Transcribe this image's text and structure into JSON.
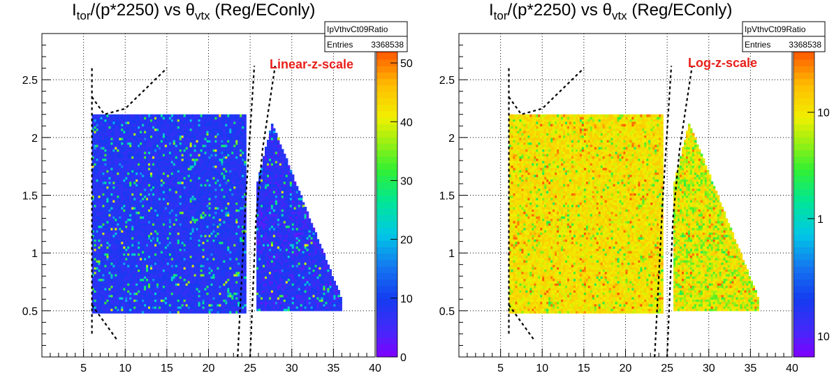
{
  "chart_data": [
    {
      "type": "heatmap",
      "title_main": "I",
      "title_sub1": "tor",
      "title_mid": "/(p*2250) vs θ",
      "title_sub2": "vtx",
      "title_end": " (Reg/EConly)",
      "stats_name": "IpVthvCt09Ratio",
      "stats_entries_label": "Entries",
      "stats_entries_value": "3368538",
      "annotation": "Linear-z-scale",
      "xlim": [
        0,
        40
      ],
      "ylim": [
        0.1,
        2.9
      ],
      "xticks": [
        5,
        10,
        15,
        20,
        25,
        30,
        35,
        40
      ],
      "yticks": [
        0.5,
        1,
        1.5,
        2,
        2.5
      ],
      "z_scale": "linear",
      "z_range": [
        0,
        55
      ],
      "z_ticks": [
        "0",
        "10",
        "20",
        "30",
        "40",
        "50"
      ],
      "z_tick_values": [
        0,
        10,
        20,
        30,
        40,
        50
      ],
      "bulk_level": 8,
      "regions": [
        {
          "x": [
            6,
            24.3
          ],
          "y_bottom": 0.47,
          "y_top": 2.2
        },
        {
          "x": [
            25.7,
            36
          ],
          "shape": "triangle",
          "y_bottom": 0.5,
          "y_top_at_left": 1.6,
          "apex_x": 27.5,
          "apex_y": 2.12,
          "y_top_at_right": 0.57
        }
      ],
      "cut_lines": [
        [
          [
            6,
            2.35
          ],
          [
            7.5,
            2.2
          ],
          [
            10,
            2.25
          ],
          [
            15,
            2.6
          ]
        ],
        [
          [
            6,
            2.6
          ],
          [
            6,
            0.3
          ]
        ],
        [
          [
            6,
            0.55
          ],
          [
            9,
            0.25
          ]
        ],
        [
          [
            23.5,
            0.1
          ],
          [
            24.5,
            1.5
          ],
          [
            25.5,
            2.62
          ]
        ],
        [
          [
            25,
            0.1
          ],
          [
            25.7,
            1.3
          ],
          [
            26.5,
            1.9
          ],
          [
            28,
            2.62
          ]
        ]
      ],
      "grid": true,
      "legend": "top-right"
    },
    {
      "type": "heatmap",
      "title_main": "I",
      "title_sub1": "tor",
      "title_mid": "/(p*2250) vs θ",
      "title_sub2": "vtx",
      "title_end": " (Reg/EConly)",
      "stats_name": "IpVthvCt09Ratio",
      "stats_entries_label": "Entries",
      "stats_entries_value": "3368538",
      "annotation": "Log-z-scale",
      "xlim": [
        0,
        40
      ],
      "ylim": [
        0.1,
        2.9
      ],
      "xticks": [
        5,
        10,
        15,
        20,
        25,
        30,
        35,
        40
      ],
      "yticks": [
        0.5,
        1,
        1.5,
        2,
        2.5
      ],
      "z_scale": "log",
      "z_range": [
        0.05,
        55
      ],
      "z_ticks": [
        "1",
        "10"
      ],
      "z_tick_values": [
        1,
        10
      ],
      "z_tick_partial": "10",
      "bulk_level": 8,
      "regions": [
        {
          "x": [
            6,
            24.3
          ],
          "y_bottom": 0.47,
          "y_top": 2.2
        },
        {
          "x": [
            25.7,
            36
          ],
          "shape": "triangle",
          "y_bottom": 0.5,
          "y_top_at_left": 1.6,
          "apex_x": 27.5,
          "apex_y": 2.12,
          "y_top_at_right": 0.57
        }
      ],
      "cut_lines": [
        [
          [
            6,
            2.35
          ],
          [
            7.5,
            2.2
          ],
          [
            10,
            2.25
          ],
          [
            15,
            2.6
          ]
        ],
        [
          [
            6,
            2.6
          ],
          [
            6,
            0.3
          ]
        ],
        [
          [
            6,
            0.55
          ],
          [
            9,
            0.25
          ]
        ],
        [
          [
            23.5,
            0.1
          ],
          [
            24.5,
            1.5
          ],
          [
            25.5,
            2.62
          ]
        ],
        [
          [
            25,
            0.1
          ],
          [
            25.7,
            1.3
          ],
          [
            26.5,
            1.9
          ],
          [
            28,
            2.62
          ]
        ]
      ],
      "grid": true,
      "legend": "top-right"
    }
  ]
}
